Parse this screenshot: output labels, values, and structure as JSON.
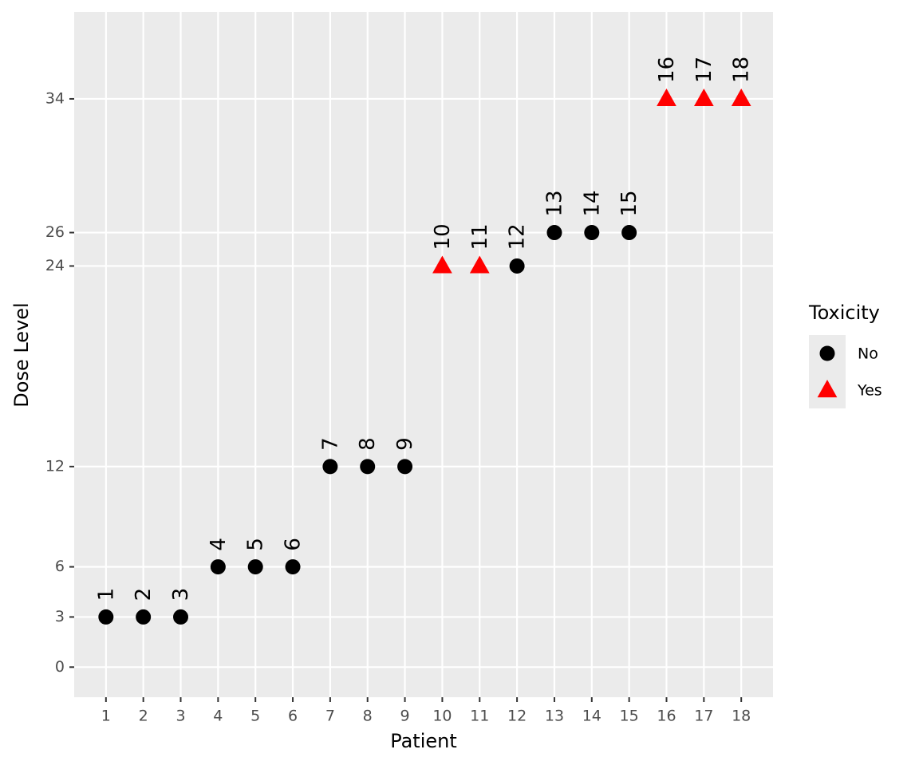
{
  "chart_data": {
    "type": "scatter",
    "xlabel": "Patient",
    "ylabel": "Dose Level",
    "legend_title": "Toxicity",
    "legend": "right",
    "xlim": [
      0.15,
      18.85
    ],
    "xticks": [
      1,
      2,
      3,
      4,
      5,
      6,
      7,
      8,
      9,
      10,
      11,
      12,
      13,
      14,
      15,
      16,
      17,
      18
    ],
    "ylim": [
      -1.8,
      39.2
    ],
    "yticks": [
      0,
      3,
      6,
      12,
      24,
      26,
      34
    ],
    "grid": true,
    "series": [
      {
        "name": "No",
        "color": "#000000",
        "shape": "circle",
        "x": [
          1,
          2,
          3,
          4,
          5,
          6,
          7,
          8,
          9,
          12,
          13,
          14,
          15
        ],
        "values": [
          3,
          3,
          3,
          6,
          6,
          6,
          12,
          12,
          12,
          24,
          26,
          26,
          26
        ]
      },
      {
        "name": "Yes",
        "color": "#ff0000",
        "shape": "triangle",
        "x": [
          10,
          11,
          16,
          17,
          18
        ],
        "values": [
          24,
          24,
          34,
          34,
          34
        ]
      }
    ]
  }
}
